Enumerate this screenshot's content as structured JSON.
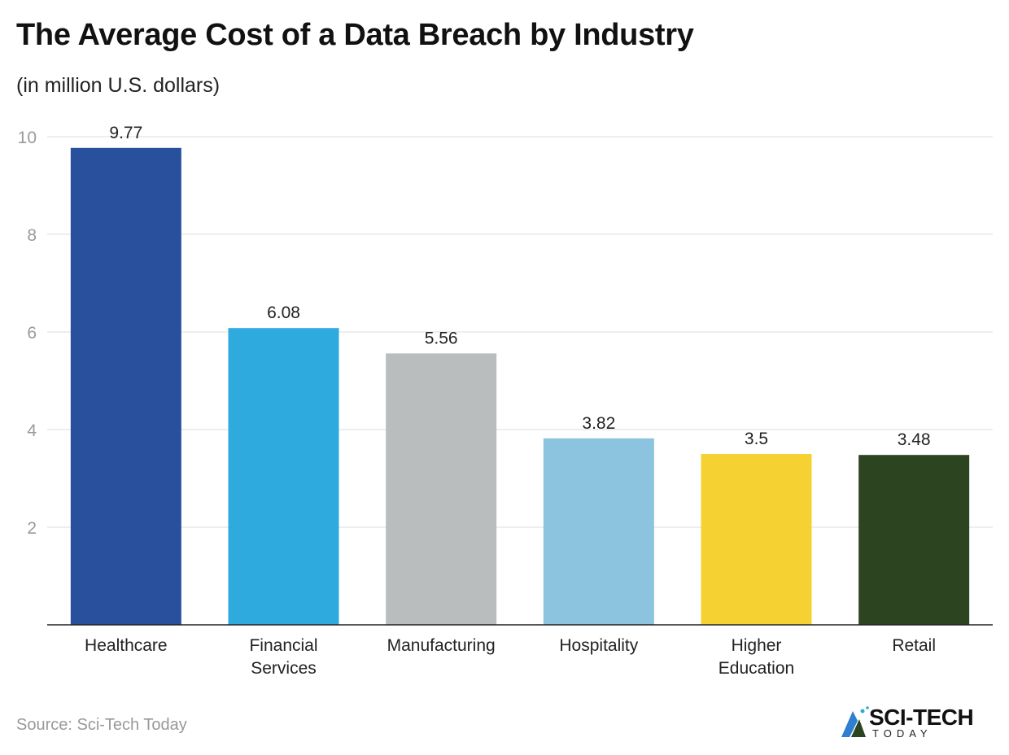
{
  "chart_data": {
    "type": "bar",
    "title": "The Average Cost of a Data Breach by Industry",
    "subtitle": "(in million U.S. dollars)",
    "categories": [
      [
        "Healthcare"
      ],
      [
        "Financial",
        "Services"
      ],
      [
        "Manufacturing"
      ],
      [
        "Hospitality"
      ],
      [
        "Higher",
        "Education"
      ],
      [
        "Retail"
      ]
    ],
    "values": [
      9.77,
      6.08,
      5.56,
      3.82,
      3.5,
      3.48
    ],
    "value_labels": [
      "9.77",
      "6.08",
      "5.56",
      "3.82",
      "3.5",
      "3.48"
    ],
    "colors": [
      "#29509c",
      "#2faadf",
      "#babdbe",
      "#8cc3df",
      "#f5d132",
      "#2d4421"
    ],
    "yticks": [
      2,
      4,
      6,
      8,
      10
    ],
    "ylim": [
      0,
      10
    ],
    "grid": true,
    "xlabel": "",
    "ylabel": ""
  },
  "footer": {
    "source": "Source: Sci-Tech Today"
  },
  "logo": {
    "main": "SCI-TECH",
    "sub": "TODAY"
  }
}
